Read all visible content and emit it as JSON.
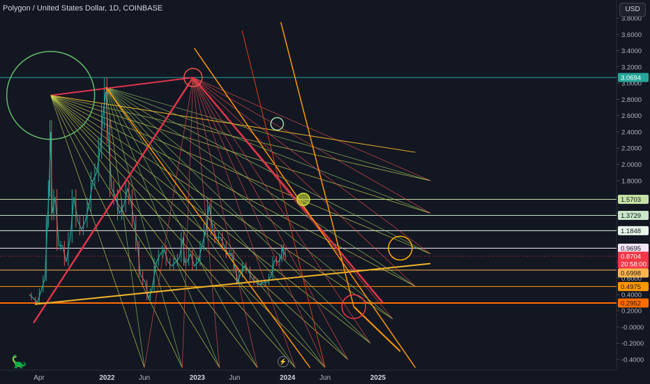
{
  "header": {
    "title": "Polygon / United States Dollar, 1D, COINBASE",
    "currency_button": "USD"
  },
  "chart_data": {
    "type": "line",
    "symbol": "Polygon / United States Dollar",
    "interval": "1D",
    "exchange": "COINBASE",
    "ylim": [
      -0.5,
      4.0
    ],
    "y_ticks": [
      3.8,
      3.6,
      3.4,
      3.2,
      3.0,
      2.8,
      2.6,
      2.4,
      2.2,
      2.0,
      1.8,
      1.6,
      1.4,
      1.2,
      1.0,
      0.8,
      0.6,
      0.4,
      0.2,
      0.0,
      -0.2,
      -0.4
    ],
    "y_tick_labels": [
      "3.8000",
      "3.6000",
      "3.4000",
      "3.2000",
      "3.0000",
      "2.8000",
      "2.6000",
      "2.4000",
      "2.2000",
      "2.0000",
      "1.8000",
      "1.6000",
      "1.4000",
      "1.2000",
      "1.0000",
      "0.8000",
      "0.6000",
      "0.4000",
      "0.2000",
      "-0.0000",
      "-0.2000",
      "-0.4000"
    ],
    "x_ticks": [
      {
        "label": "Apr",
        "date": "2021-04-01",
        "bold": false
      },
      {
        "label": "2022",
        "date": "2022-01-01",
        "bold": true
      },
      {
        "label": "Jun",
        "date": "2022-06-01",
        "bold": false
      },
      {
        "label": "2023",
        "date": "2023-01-01",
        "bold": true
      },
      {
        "label": "Jun",
        "date": "2023-06-01",
        "bold": false
      },
      {
        "label": "2024",
        "date": "2024-01-01",
        "bold": true
      },
      {
        "label": "Jun",
        "date": "2024-06-01",
        "bold": false
      },
      {
        "label": "2025",
        "date": "2025-01-01",
        "bold": true
      }
    ],
    "price_path": [
      [
        "2021-02-20",
        0.4
      ],
      [
        "2021-03-10",
        0.35
      ],
      [
        "2021-03-25",
        0.3
      ],
      [
        "2021-04-10",
        0.45
      ],
      [
        "2021-04-25",
        0.6
      ],
      [
        "2021-05-05",
        1.3
      ],
      [
        "2021-05-12",
        1.7
      ],
      [
        "2021-05-18",
        2.4
      ],
      [
        "2021-05-25",
        1.4
      ],
      [
        "2021-06-05",
        1.6
      ],
      [
        "2021-06-20",
        1.0
      ],
      [
        "2021-07-05",
        1.0
      ],
      [
        "2021-07-20",
        0.8
      ],
      [
        "2021-08-05",
        1.1
      ],
      [
        "2021-08-20",
        1.6
      ],
      [
        "2021-09-05",
        1.3
      ],
      [
        "2021-09-20",
        1.2
      ],
      [
        "2021-10-05",
        1.3
      ],
      [
        "2021-10-20",
        1.5
      ],
      [
        "2021-11-05",
        1.8
      ],
      [
        "2021-11-20",
        1.9
      ],
      [
        "2021-12-05",
        2.2
      ],
      [
        "2021-12-15",
        2.6
      ],
      [
        "2021-12-27",
        2.9
      ],
      [
        "2022-01-05",
        2.4
      ],
      [
        "2022-01-20",
        1.7
      ],
      [
        "2022-02-05",
        1.6
      ],
      [
        "2022-02-20",
        1.4
      ],
      [
        "2022-03-10",
        1.5
      ],
      [
        "2022-03-25",
        1.7
      ],
      [
        "2022-04-05",
        1.6
      ],
      [
        "2022-04-20",
        1.3
      ],
      [
        "2022-05-05",
        1.0
      ],
      [
        "2022-05-15",
        0.65
      ],
      [
        "2022-06-05",
        0.55
      ],
      [
        "2022-06-18",
        0.35
      ],
      [
        "2022-07-01",
        0.45
      ],
      [
        "2022-07-20",
        0.8
      ],
      [
        "2022-08-05",
        0.9
      ],
      [
        "2022-08-20",
        0.95
      ],
      [
        "2022-09-05",
        0.8
      ],
      [
        "2022-09-20",
        0.75
      ],
      [
        "2022-10-05",
        0.8
      ],
      [
        "2022-10-20",
        0.85
      ],
      [
        "2022-11-05",
        1.1
      ],
      [
        "2022-11-10",
        0.8
      ],
      [
        "2022-11-20",
        0.8
      ],
      [
        "2022-12-05",
        0.9
      ],
      [
        "2022-12-20",
        0.75
      ],
      [
        "2023-01-05",
        0.8
      ],
      [
        "2023-01-20",
        1.0
      ],
      [
        "2023-02-05",
        1.2
      ],
      [
        "2023-02-18",
        1.5
      ],
      [
        "2023-03-05",
        1.2
      ],
      [
        "2023-03-20",
        1.1
      ],
      [
        "2023-04-05",
        1.1
      ],
      [
        "2023-04-20",
        1.0
      ],
      [
        "2023-05-05",
        0.9
      ],
      [
        "2023-05-20",
        0.9
      ],
      [
        "2023-06-05",
        0.7
      ],
      [
        "2023-06-12",
        0.55
      ],
      [
        "2023-06-25",
        0.65
      ],
      [
        "2023-07-10",
        0.75
      ],
      [
        "2023-07-25",
        0.7
      ],
      [
        "2023-08-10",
        0.6
      ],
      [
        "2023-08-25",
        0.55
      ],
      [
        "2023-09-10",
        0.52
      ],
      [
        "2023-09-25",
        0.55
      ],
      [
        "2023-10-10",
        0.55
      ],
      [
        "2023-10-25",
        0.62
      ],
      [
        "2023-11-10",
        0.82
      ],
      [
        "2023-11-25",
        0.8
      ],
      [
        "2023-12-05",
        0.85
      ],
      [
        "2023-12-12",
        0.96
      ],
      [
        "2023-12-20",
        0.9
      ],
      [
        "2023-12-26",
        0.87
      ]
    ],
    "price_labels": [
      {
        "value": 3.0694,
        "label": "3.0694",
        "color": "#26a69a",
        "text_color": "#ffffff"
      },
      {
        "value": 1.5703,
        "label": "1.5703",
        "color": "#c5e1a5",
        "text_color": "#131722"
      },
      {
        "value": 1.3729,
        "label": "1.3729",
        "color": "#c8e6c9",
        "text_color": "#131722"
      },
      {
        "value": 1.1848,
        "label": "1.1848",
        "color": "#e8f5e9",
        "text_color": "#131722"
      },
      {
        "value": 0.9695,
        "label": "0.9695",
        "color": "#f3e5f5",
        "text_color": "#131722"
      },
      {
        "value": 0.8704,
        "label": "0.8704",
        "sublabel": "20:58:00",
        "color": "#f23645",
        "text_color": "#ffffff"
      },
      {
        "value": 0.6998,
        "label": "0.6998",
        "color": "#ffb74d",
        "text_color": "#131722"
      },
      {
        "value": 0.4975,
        "label": "0.4975",
        "color": "#ff9800",
        "text_color": "#131722"
      },
      {
        "value": 0.2952,
        "label": "0.2952",
        "color": "#ff6d00",
        "text_color": "#131722"
      }
    ],
    "horizontal_lines": [
      {
        "value": 3.0694,
        "color": "#26a69a"
      },
      {
        "value": 1.5703,
        "color": "#c5e1a5"
      },
      {
        "value": 1.3729,
        "color": "#c8e6c9"
      },
      {
        "value": 1.1848,
        "color": "#e8f5e9"
      },
      {
        "value": 0.9695,
        "color": "#f3e5f5"
      },
      {
        "value": 0.6998,
        "color": "#ffb74d"
      },
      {
        "value": 0.4975,
        "color": "#ff9800"
      },
      {
        "value": 0.2952,
        "color": "#ff6d00"
      }
    ],
    "fan_origins": [
      {
        "date": "2021-05-18",
        "value": 2.85,
        "color": "#d4e157"
      },
      {
        "date": "2021-12-27",
        "value": 2.95,
        "color": "#9ccc65"
      },
      {
        "date": "2022-12-15",
        "value": 3.07,
        "color": "#ef5350"
      }
    ],
    "fan_targets": [
      {
        "date": "2024-06-01",
        "value": -0.5
      },
      {
        "date": "2024-09-01",
        "value": -0.4
      },
      {
        "date": "2024-12-01",
        "value": -0.2
      },
      {
        "date": "2025-03-01",
        "value": 0.1
      },
      {
        "date": "2025-06-01",
        "value": 0.5
      },
      {
        "date": "2025-08-01",
        "value": 0.9
      },
      {
        "date": "2025-08-01",
        "value": 1.4
      },
      {
        "date": "2025-08-01",
        "value": 1.8
      },
      {
        "date": "2023-09-01",
        "value": -0.5
      },
      {
        "date": "2023-04-01",
        "value": -0.5
      },
      {
        "date": "2022-11-01",
        "value": -0.5
      },
      {
        "date": "2022-06-01",
        "value": -0.5
      },
      {
        "date": "2024-02-01",
        "value": -0.5
      }
    ],
    "trend_lines": [
      {
        "from": [
          "2021-03-10",
          0.05
        ],
        "to": [
          "2022-12-15",
          3.07
        ],
        "color": "#e0344a",
        "width": 2.5
      },
      {
        "from": [
          "2022-12-15",
          3.07
        ],
        "to": [
          "2025-01-20",
          0.3
        ],
        "color": "#e0344a",
        "width": 2.5
      },
      {
        "from": [
          "2021-05-18",
          2.85
        ],
        "to": [
          "2022-12-15",
          3.07
        ],
        "color": "#e0344a",
        "width": 2
      },
      {
        "from": [
          "2021-03-15",
          0.28
        ],
        "to": [
          "2025-08-01",
          0.78
        ],
        "color": "#f0b429",
        "width": 2
      },
      {
        "from": [
          "2023-12-05",
          3.75
        ],
        "to": [
          "2024-09-25",
          0.25
        ],
        "color": "#ff9800",
        "width": 1.5
      },
      {
        "from": [
          "2022-12-20",
          3.43
        ],
        "to": [
          "2025-06-01",
          -0.5
        ],
        "color": "#ff9800",
        "width": 1.5
      },
      {
        "from": [
          "2021-12-27",
          2.95
        ],
        "to": [
          "2024-04-01",
          -0.5
        ],
        "color": "#ff9800",
        "width": 1.5
      },
      {
        "from": [
          "2021-05-18",
          2.85
        ],
        "to": [
          "2025-06-01",
          2.15
        ],
        "color": "#f0b429",
        "width": 1
      },
      {
        "from": [
          "2023-07-01",
          3.65
        ],
        "to": [
          "2024-06-01",
          -0.5
        ],
        "color": "#d84315",
        "width": 1
      },
      {
        "from": [
          "2024-09-25",
          0.25
        ],
        "to": [
          "2025-04-01",
          -0.3
        ],
        "color": "#ff9800",
        "width": 2
      }
    ],
    "circles": [
      {
        "date": "2021-05-18",
        "value": 2.85,
        "r": 63,
        "color": "#66bb6a"
      },
      {
        "date": "2022-12-15",
        "value": 3.07,
        "r": 13,
        "color": "#ef5350"
      },
      {
        "date": "2023-11-20",
        "value": 2.5,
        "r": 9,
        "color": "#a5d6a7"
      },
      {
        "date": "2024-03-05",
        "value": 1.57,
        "r": 9,
        "color": "#cddc39",
        "fill": "#cddc39"
      },
      {
        "date": "2025-04-01",
        "value": 0.97,
        "r": 17,
        "color": "#ffb300"
      },
      {
        "date": "2024-09-25",
        "value": 0.25,
        "r": 17,
        "color": "#f23645"
      }
    ]
  }
}
